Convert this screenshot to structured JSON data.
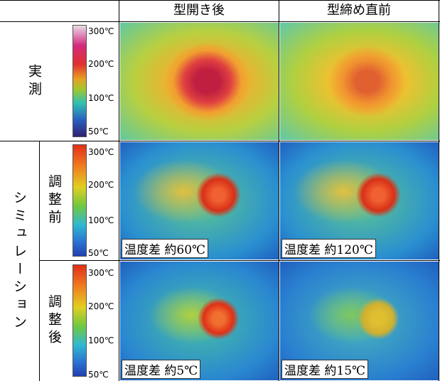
{
  "header": {
    "col1": "型開き後",
    "col2": "型締め直前"
  },
  "rows": [
    {
      "label": "実測",
      "colorbar": [
        "300℃",
        "200℃",
        "100℃",
        "50℃"
      ]
    },
    {
      "group": "シミュレーション",
      "label": "調整前",
      "colorbar": [
        "300℃",
        "200℃",
        "100℃",
        "50℃"
      ],
      "captions": [
        "温度差 約60℃",
        "温度差 約120℃"
      ]
    },
    {
      "label": "調整後",
      "colorbar": [
        "300℃",
        "200℃",
        "100℃",
        "50℃"
      ],
      "captions": [
        "温度差 約5℃",
        "温度差 約15℃"
      ]
    }
  ]
}
